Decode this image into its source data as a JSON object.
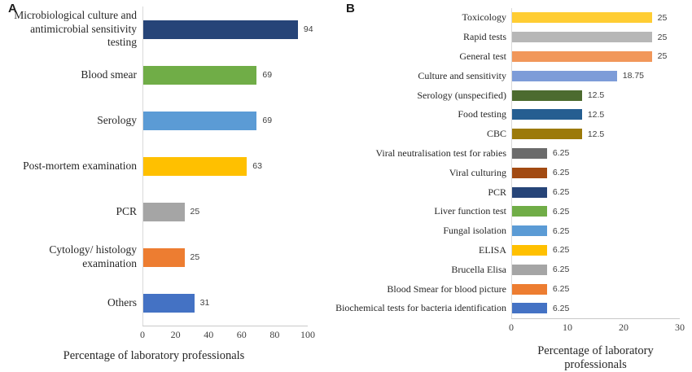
{
  "chart_data": [
    {
      "type": "bar",
      "orientation": "horizontal",
      "panel_label": "A",
      "xlabel": "Percentage of laboratory professionals",
      "xlim": [
        0,
        100
      ],
      "xticks": [
        "0",
        "20",
        "40",
        "60",
        "80",
        "100"
      ],
      "grid": false,
      "value_label_position": "outside-end",
      "categories": [
        "Microbiological culture and antimicrobial sensitivity testing",
        "Blood smear",
        "Serology",
        "Post-mortem examination",
        "PCR",
        "Cytology/ histology examination",
        "Others"
      ],
      "values": [
        94,
        69,
        69,
        63,
        25,
        25,
        31
      ],
      "value_labels": [
        "94",
        "69",
        "69",
        "63",
        "25",
        "25",
        "31"
      ],
      "colors": [
        "#264478",
        "#70ad47",
        "#5b9bd5",
        "#ffc000",
        "#a5a5a5",
        "#ed7d31",
        "#4472c4"
      ]
    },
    {
      "type": "bar",
      "orientation": "horizontal",
      "panel_label": "B",
      "xlabel": "Percentage of laboratory professionals",
      "xlim": [
        0,
        30
      ],
      "xticks": [
        "0",
        "10",
        "20",
        "30"
      ],
      "grid": false,
      "value_label_position": "outside-end",
      "categories": [
        "Toxicology",
        "Rapid tests",
        "General test",
        "Culture and sensitivity",
        "Serology (unspecified)",
        "Food testing",
        "CBC",
        "Viral neutralisation test for rabies",
        "Viral culturing",
        "PCR",
        "Liver function test",
        "Fungal isolation",
        "ELISA",
        "Brucella Elisa",
        "Blood Smear for blood picture",
        "Biochemical tests for bacteria identification"
      ],
      "values": [
        25,
        25,
        25,
        18.75,
        12.5,
        12.5,
        12.5,
        6.25,
        6.25,
        6.25,
        6.25,
        6.25,
        6.25,
        6.25,
        6.25,
        6.25
      ],
      "value_labels": [
        "25",
        "25",
        "25",
        "18.75",
        "12.5",
        "12.5",
        "12.5",
        "6.25",
        "6.25",
        "6.25",
        "6.25",
        "6.25",
        "6.25",
        "6.25",
        "6.25",
        "6.25"
      ],
      "colors": [
        "#ffcd33",
        "#b7b7b7",
        "#f1975a",
        "#7d9cd8",
        "#4c6b2f",
        "#255e91",
        "#9c7a0a",
        "#6b6b6b",
        "#a24a12",
        "#264478",
        "#70ad47",
        "#5b9bd5",
        "#ffc000",
        "#a5a5a5",
        "#ed7d31",
        "#4472c4"
      ]
    }
  ]
}
